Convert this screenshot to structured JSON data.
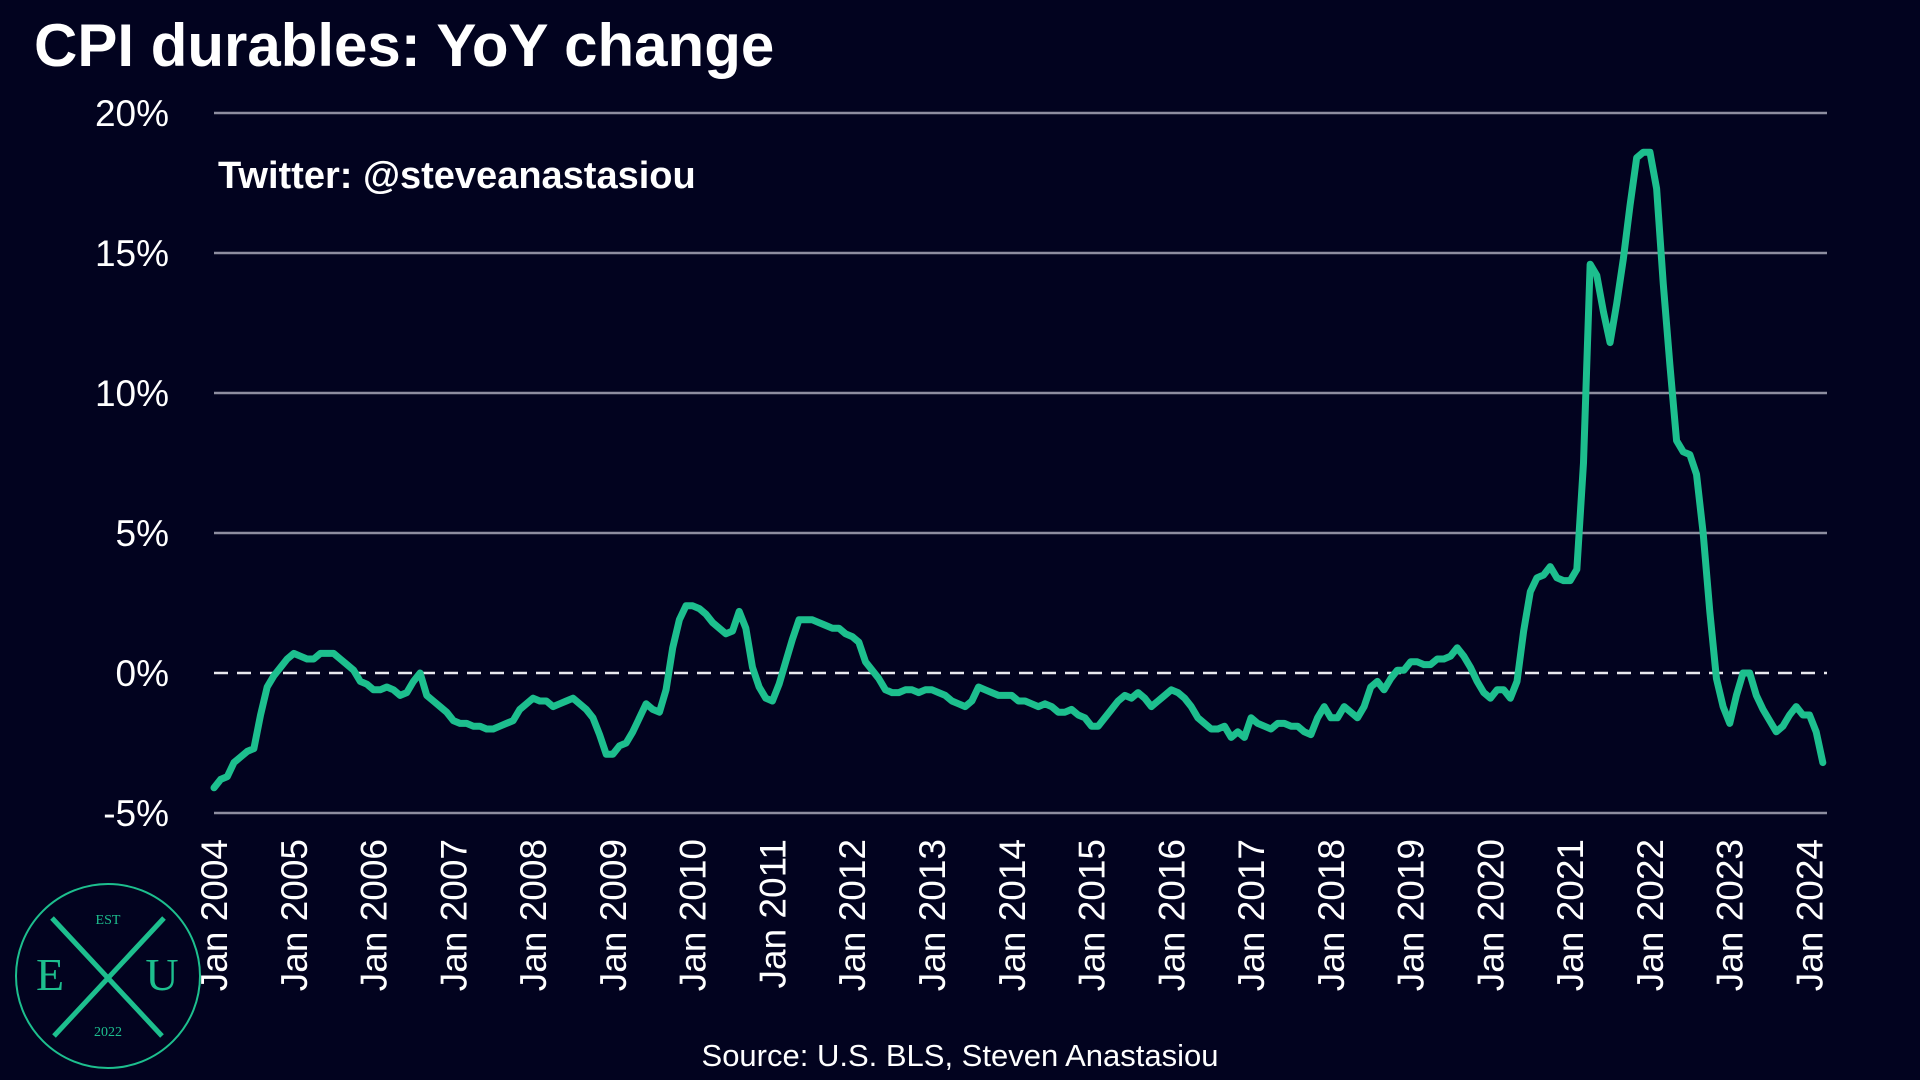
{
  "chart_data": {
    "type": "line",
    "title": "CPI durables: YoY change",
    "annotation": "Twitter: @steveanastasiou",
    "source": "Source: U.S. BLS, Steven Anastasiou",
    "categories": [
      "Jan 2004",
      null,
      null,
      null,
      null,
      null,
      null,
      null,
      null,
      null,
      null,
      null,
      "Jan 2005",
      null,
      null,
      null,
      null,
      null,
      null,
      null,
      null,
      null,
      null,
      null,
      "Jan 2006",
      null,
      null,
      null,
      null,
      null,
      null,
      null,
      null,
      null,
      null,
      null,
      "Jan 2007",
      null,
      null,
      null,
      null,
      null,
      null,
      null,
      null,
      null,
      null,
      null,
      "Jan 2008",
      null,
      null,
      null,
      null,
      null,
      null,
      null,
      null,
      null,
      null,
      null,
      "Jan 2009",
      null,
      null,
      null,
      null,
      null,
      null,
      null,
      null,
      null,
      null,
      null,
      "Jan 2010",
      null,
      null,
      null,
      null,
      null,
      null,
      null,
      null,
      null,
      null,
      null,
      "Jan 2011",
      null,
      null,
      null,
      null,
      null,
      null,
      null,
      null,
      null,
      null,
      null,
      "Jan 2012",
      null,
      null,
      null,
      null,
      null,
      null,
      null,
      null,
      null,
      null,
      null,
      "Jan 2013",
      null,
      null,
      null,
      null,
      null,
      null,
      null,
      null,
      null,
      null,
      null,
      "Jan 2014",
      null,
      null,
      null,
      null,
      null,
      null,
      null,
      null,
      null,
      null,
      null,
      "Jan 2015",
      null,
      null,
      null,
      null,
      null,
      null,
      null,
      null,
      null,
      null,
      null,
      "Jan 2016",
      null,
      null,
      null,
      null,
      null,
      null,
      null,
      null,
      null,
      null,
      null,
      "Jan 2017",
      null,
      null,
      null,
      null,
      null,
      null,
      null,
      null,
      null,
      null,
      null,
      "Jan 2018",
      null,
      null,
      null,
      null,
      null,
      null,
      null,
      null,
      null,
      null,
      null,
      "Jan 2019",
      null,
      null,
      null,
      null,
      null,
      null,
      null,
      null,
      null,
      null,
      null,
      "Jan 2020",
      null,
      null,
      null,
      null,
      null,
      null,
      null,
      null,
      null,
      null,
      null,
      "Jan 2021",
      null,
      null,
      null,
      null,
      null,
      null,
      null,
      null,
      null,
      null,
      null,
      "Jan 2022",
      null,
      null,
      null,
      null,
      null,
      null,
      null,
      null,
      null,
      null,
      null,
      "Jan 2023",
      null,
      null,
      null,
      null,
      null,
      null,
      null,
      null,
      null,
      null,
      null,
      "Jan 2024",
      null,
      null
    ],
    "series": [
      {
        "color": "#1dbf8e",
        "values": [
          -4.1,
          -3.8,
          -3.7,
          -3.2,
          -3.0,
          -2.8,
          -2.7,
          -1.5,
          -0.5,
          -0.1,
          0.2,
          0.5,
          0.7,
          0.6,
          0.5,
          0.5,
          0.7,
          0.7,
          0.7,
          0.5,
          0.3,
          0.1,
          -0.3,
          -0.4,
          -0.6,
          -0.6,
          -0.5,
          -0.6,
          -0.8,
          -0.7,
          -0.3,
          0.0,
          -0.8,
          -1.0,
          -1.2,
          -1.4,
          -1.7,
          -1.8,
          -1.8,
          -1.9,
          -1.9,
          -2.0,
          -2.0,
          -1.9,
          -1.8,
          -1.7,
          -1.3,
          -1.1,
          -0.9,
          -1.0,
          -1.0,
          -1.2,
          -1.1,
          -1.0,
          -0.9,
          -1.1,
          -1.3,
          -1.6,
          -2.2,
          -2.9,
          -2.9,
          -2.6,
          -2.5,
          -2.1,
          -1.6,
          -1.1,
          -1.3,
          -1.4,
          -0.6,
          0.9,
          1.9,
          2.4,
          2.4,
          2.3,
          2.1,
          1.8,
          1.6,
          1.4,
          1.5,
          2.2,
          1.6,
          0.2,
          -0.5,
          -0.9,
          -1.0,
          -0.4,
          0.4,
          1.2,
          1.9,
          1.9,
          1.9,
          1.8,
          1.7,
          1.6,
          1.6,
          1.4,
          1.3,
          1.1,
          0.4,
          0.1,
          -0.2,
          -0.6,
          -0.7,
          -0.7,
          -0.6,
          -0.6,
          -0.7,
          -0.6,
          -0.6,
          -0.7,
          -0.8,
          -1.0,
          -1.1,
          -1.2,
          -1.0,
          -0.5,
          -0.6,
          -0.7,
          -0.8,
          -0.8,
          -0.8,
          -1.0,
          -1.0,
          -1.1,
          -1.2,
          -1.1,
          -1.2,
          -1.4,
          -1.4,
          -1.3,
          -1.5,
          -1.6,
          -1.9,
          -1.9,
          -1.6,
          -1.3,
          -1.0,
          -0.8,
          -0.9,
          -0.7,
          -0.9,
          -1.2,
          -1.0,
          -0.8,
          -0.6,
          -0.7,
          -0.9,
          -1.2,
          -1.6,
          -1.8,
          -2.0,
          -2.0,
          -1.9,
          -2.3,
          -2.1,
          -2.3,
          -1.6,
          -1.8,
          -1.9,
          -2.0,
          -1.8,
          -1.8,
          -1.9,
          -1.9,
          -2.1,
          -2.2,
          -1.6,
          -1.2,
          -1.6,
          -1.6,
          -1.2,
          -1.4,
          -1.6,
          -1.2,
          -0.5,
          -0.3,
          -0.6,
          -0.2,
          0.1,
          0.1,
          0.4,
          0.4,
          0.3,
          0.3,
          0.5,
          0.5,
          0.6,
          0.9,
          0.6,
          0.2,
          -0.3,
          -0.7,
          -0.9,
          -0.6,
          -0.6,
          -0.9,
          -0.3,
          1.5,
          2.9,
          3.4,
          3.5,
          3.8,
          3.4,
          3.3,
          3.3,
          3.7,
          7.5,
          14.6,
          14.2,
          12.9,
          11.8,
          13.2,
          14.8,
          16.7,
          18.4,
          18.6,
          18.6,
          17.3,
          13.9,
          11.0,
          8.3,
          7.9,
          7.8,
          7.1,
          5.0,
          2.2,
          -0.2,
          -1.2,
          -1.8,
          -0.8,
          0.0,
          0.0,
          -0.8,
          -1.3,
          -1.7,
          -2.1,
          -1.9,
          -1.5,
          -1.2,
          -1.5,
          -1.5,
          -2.1,
          -3.2
        ]
      }
    ],
    "ylim": [
      -5,
      20
    ],
    "yticks": [
      {
        "value": -5,
        "label": "-5%"
      },
      {
        "value": 0,
        "label": "0%"
      },
      {
        "value": 5,
        "label": "5%"
      },
      {
        "value": 10,
        "label": "10%"
      },
      {
        "value": 15,
        "label": "15%"
      },
      {
        "value": 20,
        "label": "20%"
      }
    ],
    "grid": true,
    "zero_line": "dashed"
  },
  "logo": {
    "top": "EST",
    "left": "E",
    "right": "U",
    "bottom": "2022"
  }
}
